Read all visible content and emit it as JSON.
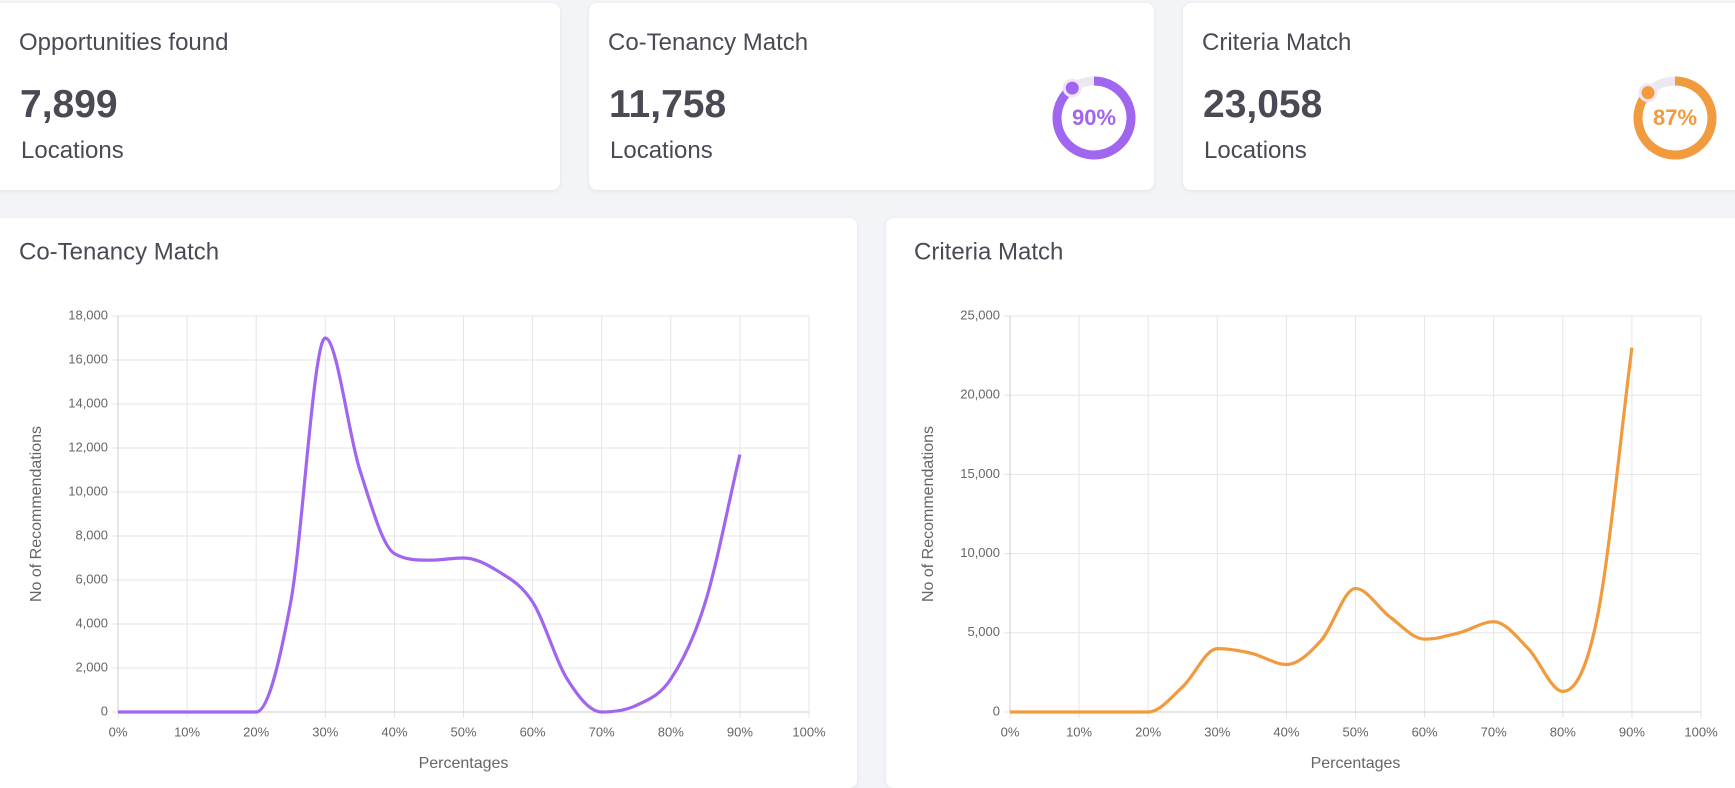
{
  "cards": [
    {
      "title": "Opportunities found",
      "value": "7,899",
      "unit": "Locations"
    },
    {
      "title": "Co-Tenancy Match",
      "value": "11,758",
      "unit": "Locations",
      "progress": 90,
      "progress_label": "90%",
      "color": "#a066f0"
    },
    {
      "title": "Criteria Match",
      "value": "23,058",
      "unit": "Locations",
      "progress": 87,
      "progress_label": "87%",
      "color": "#f19a3e"
    }
  ],
  "chart_data": [
    {
      "type": "line",
      "title": "Co-Tenancy Match",
      "xlabel": "Percentages",
      "ylabel": "No of Recommendations",
      "x": [
        0,
        5,
        10,
        15,
        20,
        25,
        30,
        35,
        40,
        45,
        50,
        55,
        60,
        65,
        70,
        75,
        80,
        85,
        90
      ],
      "values": [
        0,
        0,
        0,
        0,
        0,
        5000,
        17000,
        11000,
        7200,
        6900,
        7000,
        6400,
        5000,
        1500,
        0,
        300,
        1500,
        5000,
        11700
      ],
      "color": "#a066f0",
      "grid": true,
      "xlim": [
        0,
        100
      ],
      "xticks": [
        {
          "value": 0,
          "label": "0%"
        },
        {
          "value": 10,
          "label": "10%"
        },
        {
          "value": 20,
          "label": "20%"
        },
        {
          "value": 30,
          "label": "30%"
        },
        {
          "value": 40,
          "label": "40%"
        },
        {
          "value": 50,
          "label": "50%"
        },
        {
          "value": 60,
          "label": "60%"
        },
        {
          "value": 70,
          "label": "70%"
        },
        {
          "value": 80,
          "label": "80%"
        },
        {
          "value": 90,
          "label": "90%"
        },
        {
          "value": 100,
          "label": "100%"
        }
      ],
      "ylim": [
        0,
        18000
      ],
      "yticks": [
        0,
        {
          "value": 2000,
          "label": "2,000"
        },
        {
          "value": 4000,
          "label": "4,000"
        },
        {
          "value": 6000,
          "label": "6,000"
        },
        {
          "value": 8000,
          "label": "8,000"
        },
        {
          "value": 10000,
          "label": "10,000"
        },
        {
          "value": 12000,
          "label": "12,000"
        },
        {
          "value": 14000,
          "label": "14,000"
        },
        {
          "value": 16000,
          "label": "16,000"
        },
        {
          "value": 18000,
          "label": "18,000"
        }
      ]
    },
    {
      "type": "line",
      "title": "Criteria Match",
      "xlabel": "Percentages",
      "ylabel": "No of Recommendations",
      "x": [
        0,
        5,
        10,
        15,
        20,
        25,
        30,
        35,
        40,
        45,
        50,
        55,
        60,
        65,
        70,
        75,
        80,
        85,
        90
      ],
      "values": [
        0,
        0,
        0,
        0,
        0,
        1600,
        4000,
        3700,
        3000,
        4500,
        7800,
        6000,
        4600,
        5000,
        5700,
        4000,
        1300,
        6000,
        23000
      ],
      "color": "#f19a3e",
      "grid": true,
      "xlim": [
        0,
        100
      ],
      "xticks": [
        {
          "value": 0,
          "label": "0%"
        },
        {
          "value": 10,
          "label": "10%"
        },
        {
          "value": 20,
          "label": "20%"
        },
        {
          "value": 30,
          "label": "30%"
        },
        {
          "value": 40,
          "label": "40%"
        },
        {
          "value": 50,
          "label": "50%"
        },
        {
          "value": 60,
          "label": "60%"
        },
        {
          "value": 70,
          "label": "70%"
        },
        {
          "value": 80,
          "label": "80%"
        },
        {
          "value": 90,
          "label": "90%"
        },
        {
          "value": 100,
          "label": "100%"
        }
      ],
      "ylim": [
        0,
        25000
      ],
      "yticks": [
        0,
        {
          "value": 5000,
          "label": "5,000"
        },
        {
          "value": 10000,
          "label": "10,000"
        },
        {
          "value": 15000,
          "label": "15,000"
        },
        {
          "value": 20000,
          "label": "20,000"
        },
        {
          "value": 25000,
          "label": "25,000"
        }
      ]
    }
  ]
}
